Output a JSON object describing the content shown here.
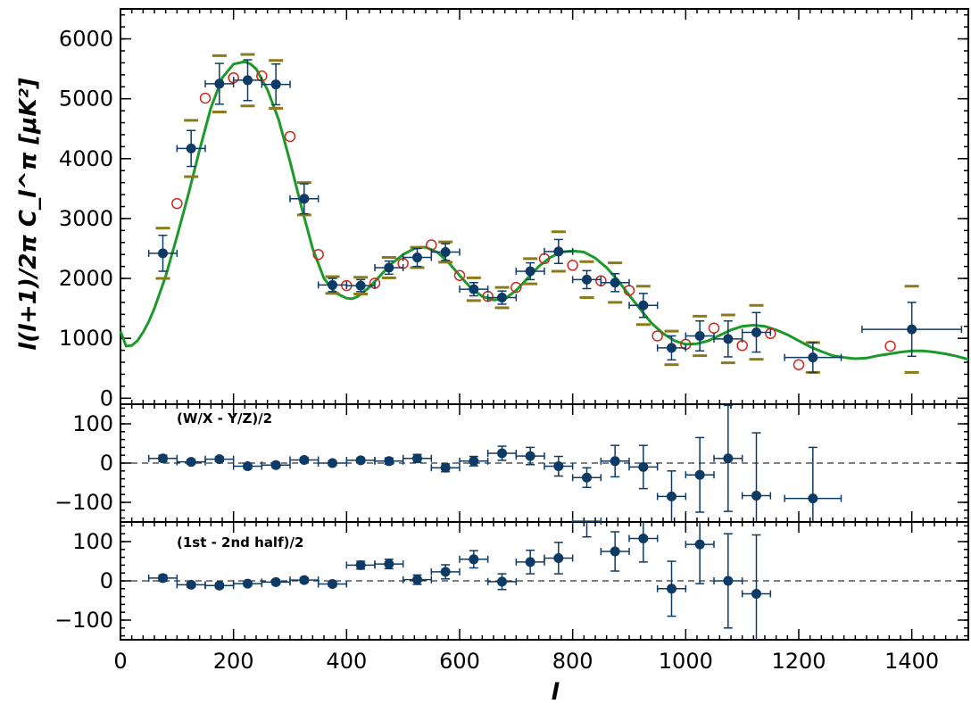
{
  "chart_data": [
    {
      "type": "scatter",
      "panel": "main",
      "xlabel": "l",
      "ylabel": "l(l+1)/2π  C_l^π [μK²]",
      "xlim": [
        0,
        1500
      ],
      "ylim": [
        -100,
        6500
      ],
      "x_ticks": [
        "0",
        "200",
        "400",
        "600",
        "800",
        "1000",
        "1200",
        "1400"
      ],
      "y_ticks": [
        "0",
        "1000",
        "2000",
        "3000",
        "4000",
        "5000",
        "6000"
      ],
      "colors": {
        "points": "#0d3b66",
        "theory": "#1b9a2a",
        "open": "#cc2a1f",
        "syst": "#8a7a1a"
      },
      "series": [
        {
          "kind": "binned points with error bars",
          "x": [
            75,
            125,
            175,
            225,
            275,
            325,
            375,
            425,
            475,
            525,
            575,
            625,
            675,
            725,
            775,
            825,
            875,
            925,
            975,
            1025,
            1075,
            1125,
            1225,
            1400
          ],
          "xerr": [
            25,
            25,
            25,
            25,
            25,
            25,
            25,
            25,
            25,
            25,
            25,
            25,
            25,
            25,
            25,
            25,
            25,
            25,
            25,
            25,
            25,
            25,
            50,
            88
          ],
          "y": [
            2420,
            4170,
            5250,
            5310,
            5240,
            3330,
            1890,
            1880,
            2180,
            2350,
            2440,
            1820,
            1680,
            2120,
            2450,
            1980,
            1930,
            1550,
            840,
            1040,
            990,
            1100,
            680,
            1150
          ],
          "yerr": [
            300,
            300,
            340,
            340,
            340,
            250,
            110,
            100,
            110,
            150,
            140,
            110,
            110,
            140,
            200,
            150,
            150,
            200,
            200,
            250,
            300,
            330,
            250,
            450
          ],
          "syst": [
            420,
            470,
            470,
            430,
            400,
            270,
            140,
            140,
            170,
            170,
            170,
            190,
            170,
            210,
            330,
            300,
            330,
            320,
            280,
            330,
            400,
            450,
            250,
            720
          ]
        },
        {
          "kind": "open circles",
          "x": [
            100,
            150,
            200,
            250,
            300,
            350,
            400,
            450,
            500,
            550,
            600,
            650,
            700,
            750,
            800,
            850,
            900,
            950,
            1000,
            1050,
            1100,
            1150,
            1200,
            1362
          ],
          "y": [
            3250,
            5010,
            5350,
            5380,
            4370,
            2400,
            1880,
            1920,
            2250,
            2560,
            2050,
            1700,
            1850,
            2330,
            2220,
            1960,
            1800,
            1040,
            900,
            1170,
            880,
            1080,
            560,
            870
          ]
        },
        {
          "kind": "theory curve",
          "x": [
            0,
            10,
            20,
            30,
            40,
            50,
            60,
            80,
            100,
            120,
            140,
            160,
            180,
            200,
            220,
            230,
            240,
            260,
            280,
            300,
            320,
            340,
            360,
            380,
            400,
            410,
            420,
            440,
            460,
            480,
            500,
            520,
            530,
            540,
            560,
            580,
            600,
            620,
            640,
            660,
            680,
            700,
            720,
            740,
            760,
            780,
            800,
            820,
            840,
            860,
            880,
            900,
            920,
            940,
            960,
            980,
            1000,
            1020,
            1040,
            1060,
            1080,
            1100,
            1120,
            1140,
            1160,
            1180,
            1200,
            1220,
            1240,
            1260,
            1280,
            1300,
            1320,
            1340,
            1360,
            1380,
            1400,
            1420,
            1440,
            1460,
            1480,
            1500
          ],
          "y": [
            1120,
            870,
            880,
            960,
            1100,
            1280,
            1500,
            2040,
            2700,
            3400,
            4150,
            4850,
            5350,
            5580,
            5620,
            5580,
            5500,
            5150,
            4650,
            3950,
            3200,
            2500,
            2000,
            1760,
            1670,
            1660,
            1700,
            1850,
            2050,
            2250,
            2400,
            2500,
            2520,
            2520,
            2440,
            2270,
            2050,
            1840,
            1700,
            1640,
            1660,
            1800,
            2000,
            2200,
            2350,
            2440,
            2460,
            2440,
            2340,
            2180,
            1970,
            1720,
            1480,
            1250,
            1080,
            960,
            900,
            910,
            960,
            1050,
            1140,
            1200,
            1220,
            1200,
            1140,
            1060,
            960,
            860,
            780,
            710,
            680,
            660,
            670,
            710,
            740,
            770,
            790,
            790,
            770,
            740,
            700,
            650
          ]
        }
      ]
    },
    {
      "type": "scatter",
      "panel": "middle",
      "annotation": "(W/X - Y/Z)/2",
      "xlim": [
        0,
        1500
      ],
      "ylim": [
        -150,
        150
      ],
      "y_ticks": [
        "100",
        "0",
        "−100"
      ],
      "x": [
        75,
        125,
        175,
        225,
        275,
        325,
        375,
        425,
        475,
        525,
        575,
        625,
        675,
        725,
        775,
        825,
        875,
        925,
        975,
        1025,
        1075,
        1125,
        1225
      ],
      "xerr": [
        25,
        25,
        25,
        25,
        25,
        25,
        25,
        25,
        25,
        25,
        25,
        25,
        25,
        25,
        25,
        25,
        25,
        25,
        25,
        25,
        25,
        25,
        50
      ],
      "y": [
        12,
        3,
        10,
        -8,
        -5,
        8,
        0,
        7,
        5,
        12,
        -12,
        5,
        25,
        18,
        -8,
        -37,
        5,
        -10,
        -85,
        -30,
        12,
        -83,
        -90
      ],
      "yerr": [
        8,
        6,
        6,
        6,
        6,
        6,
        6,
        6,
        8,
        10,
        10,
        12,
        18,
        22,
        25,
        25,
        40,
        55,
        65,
        95,
        135,
        160,
        130
      ]
    },
    {
      "type": "scatter",
      "panel": "bottom",
      "annotation": "(1st - 2nd half)/2",
      "xlim": [
        0,
        1500
      ],
      "ylim": [
        -150,
        150
      ],
      "y_ticks": [
        "100",
        "0",
        "−100"
      ],
      "x": [
        75,
        125,
        175,
        225,
        275,
        325,
        375,
        425,
        475,
        525,
        575,
        625,
        675,
        725,
        775,
        825,
        875,
        925,
        975,
        1025,
        1075,
        1125
      ],
      "xerr": [
        25,
        25,
        25,
        25,
        25,
        25,
        25,
        25,
        25,
        25,
        25,
        25,
        25,
        25,
        25,
        25,
        25,
        25,
        25,
        25,
        25,
        25
      ],
      "y": [
        7,
        -10,
        -12,
        -7,
        -3,
        2,
        -8,
        40,
        43,
        3,
        23,
        55,
        -2,
        48,
        58,
        152,
        75,
        108,
        -20,
        93,
        0,
        -33
      ],
      "yerr": [
        8,
        6,
        6,
        6,
        6,
        6,
        6,
        10,
        12,
        12,
        18,
        22,
        20,
        30,
        40,
        40,
        50,
        60,
        70,
        100,
        120,
        150
      ]
    }
  ]
}
